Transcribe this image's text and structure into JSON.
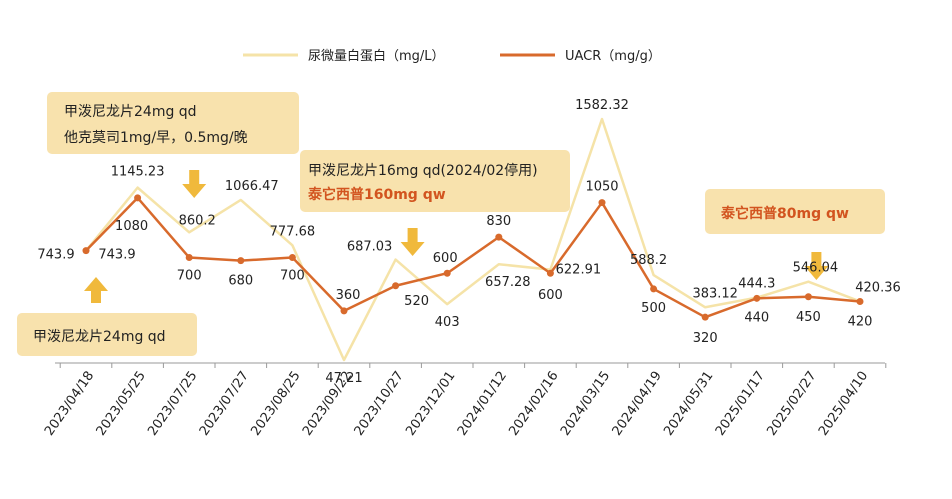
{
  "chart_data": {
    "type": "line",
    "categories": [
      "2023/04/18",
      "2023/05/25",
      "2023/07/25",
      "2023/07/27",
      "2023/08/25",
      "2023/09/22",
      "2023/10/27",
      "2023/12/01",
      "2024/01/12",
      "2024/02/16",
      "2024/03/15",
      "2024/04/19",
      "2024/05/31",
      "2025/01/17",
      "2025/02/27",
      "2025/04/10"
    ],
    "series": [
      {
        "name": "尿微量白蛋白（mg/L）",
        "color": "#f5e3a8",
        "values": [
          743.9,
          1145.23,
          860.2,
          1066.47,
          777.68,
          47.21,
          687.03,
          403,
          657.28,
          622.91,
          1582.32,
          588.2,
          383.12,
          444.3,
          546.04,
          420.36
        ],
        "labels": [
          "743.9",
          "1145.23",
          "860.2",
          "1066.47",
          "777.68",
          "47.21",
          "687.03",
          "403",
          "657.28",
          "622.91",
          "1582.32",
          "588.2",
          "383.12",
          "444.3",
          "546.04",
          "420.36"
        ]
      },
      {
        "name": "UACR（mg/g）",
        "color": "#d86a2c",
        "values": [
          743.9,
          1080,
          700,
          680,
          700,
          360,
          520,
          600,
          830,
          600,
          1050,
          500,
          320,
          440,
          450,
          420
        ],
        "labels": [
          "743.9",
          "1080",
          "700",
          "680",
          "700",
          "360",
          "520",
          "600",
          "830",
          "600",
          "1050",
          "500",
          "320",
          "440",
          "450",
          "420"
        ]
      }
    ],
    "legend_position": "top-center",
    "grid": false,
    "ylim": [
      0,
      1700
    ]
  },
  "annotations": [
    {
      "lines": [
        {
          "text": "甲泼尼龙片24mg qd",
          "style": "normal"
        },
        {
          "text": "他克莫司1mg/早，0.5mg/晚",
          "style": "normal"
        }
      ],
      "arrow_at": "2023/07/25"
    },
    {
      "lines": [
        {
          "text": "甲泼尼龙片16mg qd(2024/02停用)",
          "style": "normal"
        },
        {
          "text": "泰它西普160mg qw",
          "style": "red"
        }
      ],
      "arrow_at": "2023/10/27"
    },
    {
      "lines": [
        {
          "text": "泰它西普80mg qw",
          "style": "red"
        }
      ],
      "arrow_at": "2025/02/27"
    },
    {
      "lines": [
        {
          "text": "甲泼尼龙片24mg qd",
          "style": "normal"
        }
      ],
      "arrow_at": "2023/04/18"
    }
  ]
}
